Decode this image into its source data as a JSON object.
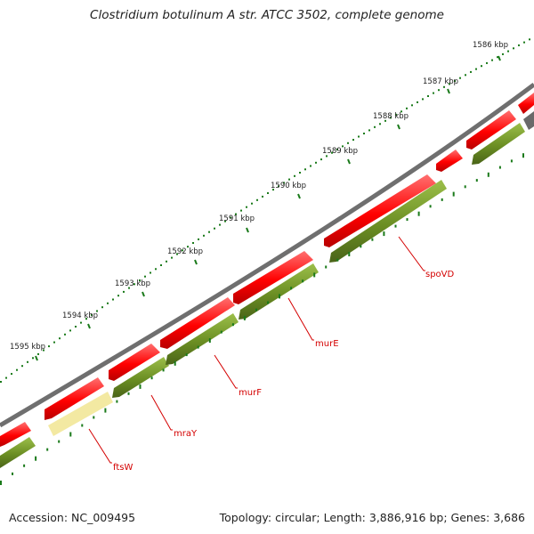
{
  "title": "Clostridium botulinum A str. ATCC 3502, complete genome",
  "accession": "Accession: NC_009495",
  "summary": "Topology: circular; Length: 3,886,916 bp; Genes: 3,686",
  "colors": {
    "backbone": "#7b7b7b",
    "forward_gene": "#ff0000",
    "reverse_gene": "#6b8e23",
    "pseudo_gene": "#f5eaa0",
    "grey_gene": "#808080",
    "tick": "#1a7a1a",
    "label": "#d40000"
  },
  "ruler_labels": [
    "1586 kbp",
    "1587 kbp",
    "1588 kbp",
    "1589 kbp",
    "1590 kbp",
    "1591 kbp",
    "1592 kbp",
    "1593 kbp",
    "1594 kbp",
    "1595 kbp"
  ],
  "gene_labels": [
    "spoVD",
    "murE",
    "murF",
    "mraY",
    "ftsW"
  ]
}
